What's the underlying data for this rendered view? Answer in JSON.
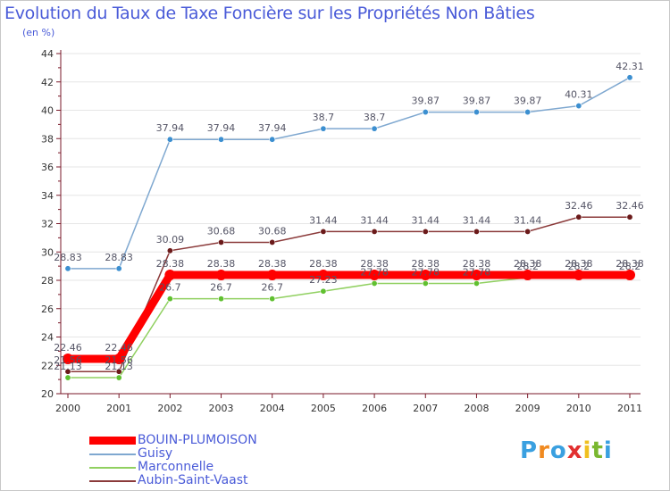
{
  "title": "Evolution du Taux de Taxe Foncière sur les Propriétés Non Bâties",
  "unit_label": "(en %)",
  "logo_text": "Proxiti",
  "chart_data": {
    "type": "line",
    "categories": [
      "2000",
      "2001",
      "2002",
      "2003",
      "2004",
      "2005",
      "2006",
      "2007",
      "2008",
      "2009",
      "2010",
      "2011"
    ],
    "ylim": [
      20,
      44
    ],
    "yticks": [
      20,
      22,
      24,
      26,
      28,
      30,
      32,
      34,
      36,
      38,
      40,
      42,
      44
    ],
    "series": [
      {
        "name": "Guisy",
        "color": "#7fa8d0",
        "marker": "#3c8fd0",
        "values": [
          28.83,
          28.83,
          37.94,
          37.94,
          37.94,
          38.7,
          38.7,
          39.87,
          39.87,
          39.87,
          40.31,
          42.31
        ],
        "labels": [
          "28.83",
          "28.83",
          "37.94",
          "37.94",
          "37.94",
          "38.7",
          "38.7",
          "39.87",
          "39.87",
          "39.87",
          "40.31",
          "42.31"
        ]
      },
      {
        "name": "Aubin-Saint-Vaast",
        "color": "#8b3a3a",
        "marker": "#6b1a1a",
        "values": [
          21.56,
          21.56,
          30.09,
          30.68,
          30.68,
          31.44,
          31.44,
          31.44,
          31.44,
          31.44,
          32.46,
          32.46
        ],
        "labels": [
          "21.56",
          "21.56",
          "30.09",
          "30.68",
          "30.68",
          "31.44",
          "31.44",
          "31.44",
          "31.44",
          "31.44",
          "32.46",
          "32.46"
        ]
      },
      {
        "name": "Marconnelle",
        "color": "#90d060",
        "marker": "#60c030",
        "values": [
          21.13,
          21.13,
          26.7,
          26.7,
          26.7,
          27.23,
          27.78,
          27.78,
          27.78,
          28.2,
          28.2,
          28.2
        ],
        "labels": [
          "21.13",
          "21.13",
          "26.7",
          "26.7",
          "26.7",
          "27.23",
          "27.78",
          "27.78",
          "27.78",
          "28.2",
          "28.2",
          "28.2"
        ]
      },
      {
        "name": "BOUIN-PLUMOISON",
        "color": "#ff0000",
        "marker": "#ff0000",
        "values": [
          22.46,
          22.46,
          28.38,
          28.38,
          28.38,
          28.38,
          28.38,
          28.38,
          28.38,
          28.38,
          28.38,
          28.38
        ],
        "labels": [
          "22.46",
          "22.46",
          "28.38",
          "28.38",
          "28.38",
          "28.38",
          "28.38",
          "28.38",
          "28.38",
          "28.38",
          "28.38",
          "28.38"
        ]
      }
    ],
    "legend": [
      {
        "name": "BOUIN-PLUMOISON",
        "color": "#ff0000"
      },
      {
        "name": "Guisy",
        "color": "#7fa8d0"
      },
      {
        "name": "Marconnelle",
        "color": "#90d060"
      },
      {
        "name": "Aubin-Saint-Vaast",
        "color": "#8b3a3a"
      }
    ]
  }
}
